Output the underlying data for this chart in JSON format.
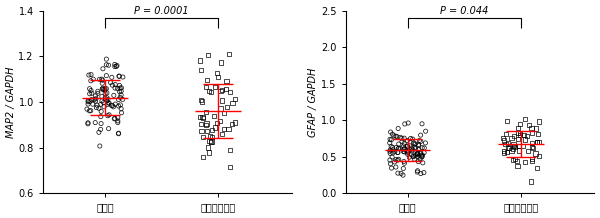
{
  "panel1": {
    "ylabel": "MAP2 / GAPDH",
    "ylim": [
      0.6,
      1.4
    ],
    "yticks": [
      0.6,
      0.8,
      1.0,
      1.2,
      1.4
    ],
    "ytick_labels": [
      "0.6",
      "0.8",
      "1.0",
      "1.2",
      "1.4"
    ],
    "groups": [
      "健常群",
      "統合失調症群"
    ],
    "group1_mean": 1.03,
    "group1_sd": 0.085,
    "group2_mean": 0.95,
    "group2_sd": 0.115,
    "pvalue": "P = 0.0001",
    "n1": 105,
    "n2": 55,
    "seed1": 42,
    "seed2": 43
  },
  "panel2": {
    "ylabel": "GFAP / GAPDH",
    "ylim": [
      0.0,
      2.5
    ],
    "yticks": [
      0.0,
      0.5,
      1.0,
      1.5,
      2.0,
      2.5
    ],
    "ytick_labels": [
      "0.0",
      "0.5",
      "1.0",
      "1.5",
      "2.0",
      "2.5"
    ],
    "groups": [
      "健常群",
      "統合失調症群"
    ],
    "group1_mean": 0.58,
    "group1_sd": 0.155,
    "group2_mean": 0.68,
    "group2_sd": 0.195,
    "pvalue": "P = 0.044",
    "n1": 105,
    "n2": 55,
    "seed1": 10,
    "seed2": 11
  },
  "marker_color": "#000000",
  "error_color": "#ff0000",
  "marker_size": 3.0,
  "marker_lw": 0.55,
  "marker_alpha": 0.9,
  "font_size": 7,
  "pvalue_font_size": 7,
  "label_font_size": 8,
  "tick_font_size": 7,
  "background_color": "#ffffff"
}
